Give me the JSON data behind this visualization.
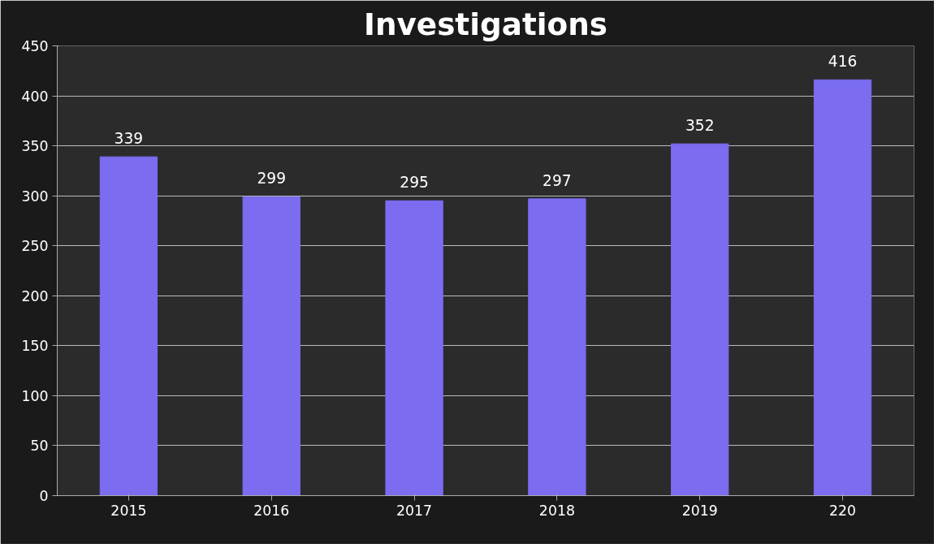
{
  "chart_data": {
    "type": "bar",
    "title": "Investigations",
    "categories": [
      "2015",
      "2016",
      "2017",
      "2018",
      "2019",
      "220"
    ],
    "values": [
      339,
      299,
      295,
      297,
      352,
      416
    ],
    "color": "#7b6cf0",
    "ylim": [
      0,
      450
    ],
    "yticks": [
      0,
      50,
      100,
      150,
      200,
      250,
      300,
      350,
      400,
      450
    ],
    "grid": "y",
    "data_labels": true
  }
}
